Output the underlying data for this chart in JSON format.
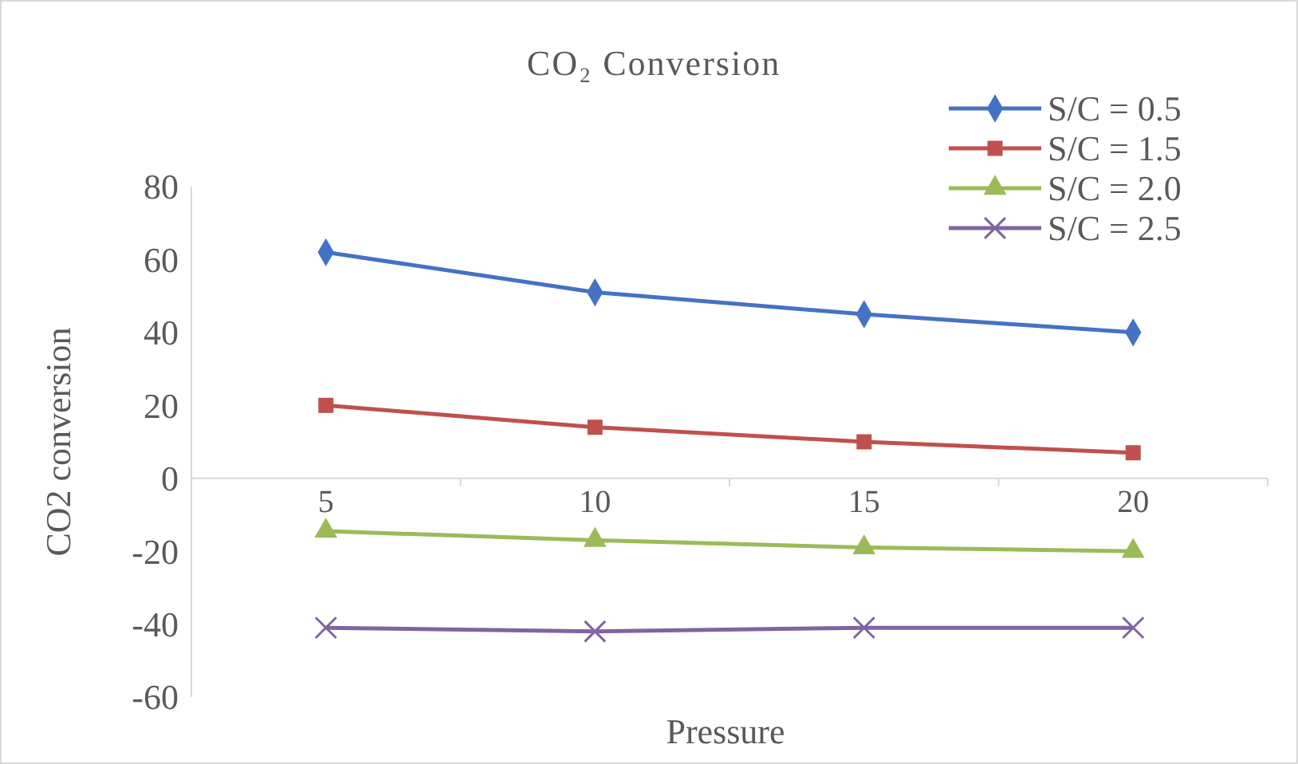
{
  "chart_data": {
    "type": "line",
    "title": "CO₂ Conversion",
    "xlabel": "Pressure",
    "ylabel": "CO2 conversion",
    "categories": [
      "5",
      "10",
      "15",
      "20"
    ],
    "series": [
      {
        "name": "S/C = 0.5",
        "color": "#4472c4",
        "marker": "diamond",
        "values": [
          62,
          51,
          45,
          40
        ]
      },
      {
        "name": "S/C = 1.5",
        "color": "#c0504d",
        "marker": "square",
        "values": [
          20,
          14,
          10,
          7
        ]
      },
      {
        "name": "S/C = 2.0",
        "color": "#9bbb59",
        "marker": "triangle",
        "values": [
          -14.5,
          -17,
          -19,
          -20
        ]
      },
      {
        "name": "S/C = 2.5",
        "color": "#8064a2",
        "marker": "cross",
        "values": [
          -41,
          -42,
          -41,
          -41
        ]
      }
    ],
    "ylim": [
      -60,
      80
    ],
    "yticks": [
      -60,
      -40,
      -20,
      0,
      20,
      40,
      60,
      80
    ],
    "grid": false,
    "legend": "top right"
  }
}
